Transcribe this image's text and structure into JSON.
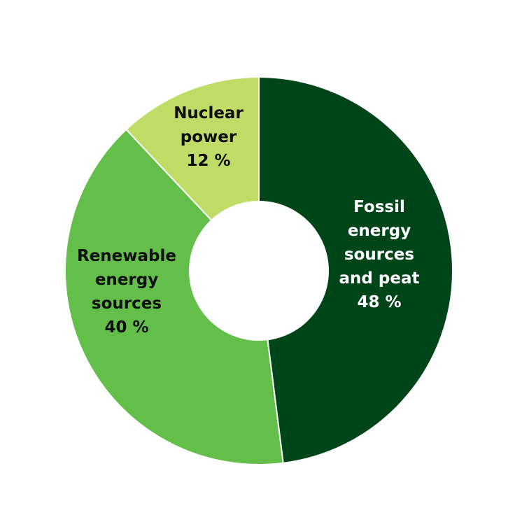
{
  "chart_data": {
    "type": "pie",
    "donut": true,
    "title": "",
    "start": "top",
    "direction": "clockwise",
    "slices": [
      {
        "name": "Fossil energy sources and peat",
        "label_lines": [
          "Fossil",
          "energy",
          "sources",
          "and peat",
          "48 %"
        ],
        "value": 48,
        "color": "#00441a",
        "label_color": "#ffffff"
      },
      {
        "name": "Renewable energy sources",
        "label_lines": [
          "Renewable",
          "energy",
          "sources",
          "40 %"
        ],
        "value": 40,
        "color": "#63be4a",
        "label_color": "#0f0f0f"
      },
      {
        "name": "Nuclear power",
        "label_lines": [
          "Nuclear",
          "power",
          "12 %"
        ],
        "value": 12,
        "color": "#bfdc66",
        "label_color": "#0f0f0f"
      }
    ]
  }
}
